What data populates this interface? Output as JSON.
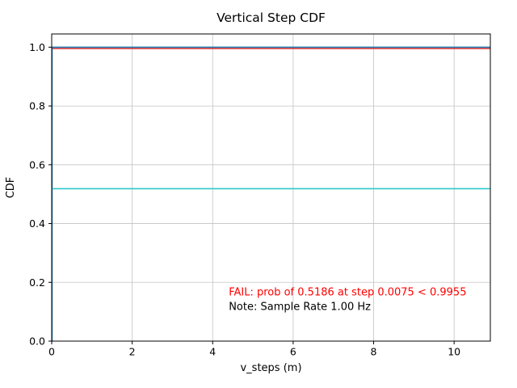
{
  "chart_data": {
    "type": "line",
    "title": "Vertical Step CDF",
    "xlabel": "v_steps (m)",
    "ylabel": "CDF",
    "xlim": [
      0,
      10.9
    ],
    "ylim": [
      0,
      1.045
    ],
    "xticks": [
      0,
      2,
      4,
      6,
      8,
      10
    ],
    "xtick_labels": [
      "0",
      "2",
      "4",
      "6",
      "8",
      "10"
    ],
    "yticks": [
      0.0,
      0.2,
      0.4,
      0.6,
      0.8,
      1.0
    ],
    "ytick_labels": [
      "0.0",
      "0.2",
      "0.4",
      "0.6",
      "0.8",
      "1.0"
    ],
    "grid": true,
    "grid_color": "#c3c3c3",
    "series": [
      {
        "name": "threshold-line",
        "color": "#d62728",
        "points": [
          [
            0,
            0.9955
          ],
          [
            10.9,
            0.9955
          ]
        ]
      },
      {
        "name": "cdf-step-line",
        "color": "#1f77b4",
        "points": [
          [
            0,
            0
          ],
          [
            0.0075,
            0
          ],
          [
            0.0075,
            1.0
          ],
          [
            10.9,
            1.0
          ]
        ]
      },
      {
        "name": "prob-at-step-line",
        "color": "#2ec8c8",
        "points": [
          [
            0,
            0.5186
          ],
          [
            10.9,
            0.5186
          ]
        ]
      }
    ],
    "annotations": [
      {
        "name": "fail-annotation",
        "text": "FAIL: prob of 0.5186 at step 0.0075 < 0.9955",
        "color": "#ff0000",
        "x": 4.4,
        "y": 0.155
      },
      {
        "name": "sample-rate-note",
        "text": "Note: Sample Rate 1.00 Hz",
        "color": "#000000",
        "x": 4.4,
        "y": 0.106
      }
    ]
  }
}
